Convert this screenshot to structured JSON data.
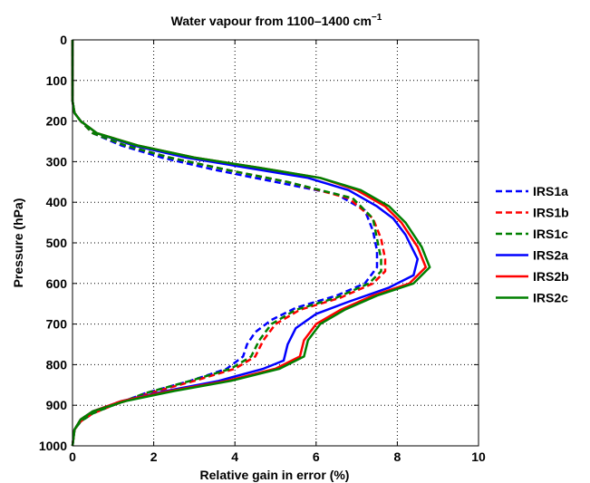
{
  "chart_data": {
    "type": "line",
    "title": "Water vapour from 1100–1400 cm",
    "title_superscript": "−1",
    "xlabel": "Relative gain in error (%)",
    "ylabel": "Pressure (hPa)",
    "xlim": [
      0,
      10
    ],
    "ylim": [
      1000,
      0
    ],
    "y_reversed": true,
    "x_ticks": [
      0,
      2,
      4,
      6,
      8,
      10
    ],
    "y_ticks": [
      0,
      100,
      200,
      300,
      400,
      500,
      600,
      700,
      800,
      900,
      1000
    ],
    "grid": true,
    "legend_position": "outside-right",
    "series": [
      {
        "name": "IRS1a",
        "color": "#0000ff",
        "dash": "dashed",
        "points": [
          [
            0,
            0
          ],
          [
            0,
            100
          ],
          [
            0,
            150
          ],
          [
            0.05,
            180
          ],
          [
            0.2,
            200
          ],
          [
            0.5,
            230
          ],
          [
            1.2,
            260
          ],
          [
            2.2,
            290
          ],
          [
            3.5,
            320
          ],
          [
            5.0,
            350
          ],
          [
            6.5,
            380
          ],
          [
            7.2,
            420
          ],
          [
            7.4,
            470
          ],
          [
            7.5,
            520
          ],
          [
            7.5,
            560
          ],
          [
            7.2,
            600
          ],
          [
            6.5,
            630
          ],
          [
            5.5,
            660
          ],
          [
            4.9,
            690
          ],
          [
            4.5,
            720
          ],
          [
            4.3,
            750
          ],
          [
            4.2,
            780
          ],
          [
            3.8,
            810
          ],
          [
            2.9,
            840
          ],
          [
            1.8,
            870
          ],
          [
            1.0,
            900
          ],
          [
            0.5,
            920
          ],
          [
            0.2,
            940
          ],
          [
            0.05,
            960
          ],
          [
            0,
            1000
          ]
        ]
      },
      {
        "name": "IRS1b",
        "color": "#ff0000",
        "dash": "dashed",
        "points": [
          [
            0,
            0
          ],
          [
            0,
            100
          ],
          [
            0,
            150
          ],
          [
            0.05,
            180
          ],
          [
            0.2,
            200
          ],
          [
            0.5,
            230
          ],
          [
            1.3,
            260
          ],
          [
            2.4,
            290
          ],
          [
            3.8,
            320
          ],
          [
            5.3,
            350
          ],
          [
            6.8,
            390
          ],
          [
            7.4,
            440
          ],
          [
            7.6,
            490
          ],
          [
            7.7,
            540
          ],
          [
            7.7,
            570
          ],
          [
            7.4,
            600
          ],
          [
            6.6,
            635
          ],
          [
            5.6,
            665
          ],
          [
            5.0,
            700
          ],
          [
            4.7,
            740
          ],
          [
            4.5,
            780
          ],
          [
            4.0,
            810
          ],
          [
            3.0,
            840
          ],
          [
            1.9,
            870
          ],
          [
            1.0,
            900
          ],
          [
            0.5,
            920
          ],
          [
            0.2,
            940
          ],
          [
            0.05,
            960
          ],
          [
            0,
            1000
          ]
        ]
      },
      {
        "name": "IRS1c",
        "color": "#008000",
        "dash": "dashed",
        "points": [
          [
            0,
            0
          ],
          [
            0,
            100
          ],
          [
            0,
            150
          ],
          [
            0.05,
            180
          ],
          [
            0.2,
            200
          ],
          [
            0.5,
            230
          ],
          [
            1.3,
            260
          ],
          [
            2.4,
            290
          ],
          [
            3.8,
            320
          ],
          [
            5.3,
            350
          ],
          [
            6.9,
            390
          ],
          [
            7.4,
            440
          ],
          [
            7.5,
            490
          ],
          [
            7.6,
            540
          ],
          [
            7.6,
            570
          ],
          [
            7.3,
            600
          ],
          [
            6.5,
            635
          ],
          [
            5.5,
            665
          ],
          [
            4.9,
            700
          ],
          [
            4.6,
            740
          ],
          [
            4.4,
            780
          ],
          [
            3.9,
            810
          ],
          [
            2.9,
            840
          ],
          [
            1.8,
            870
          ],
          [
            1.0,
            900
          ],
          [
            0.5,
            920
          ],
          [
            0.2,
            940
          ],
          [
            0.05,
            960
          ],
          [
            0,
            1000
          ]
        ]
      },
      {
        "name": "IRS2a",
        "color": "#0000ff",
        "dash": "solid",
        "points": [
          [
            0,
            0
          ],
          [
            0,
            100
          ],
          [
            0,
            150
          ],
          [
            0.05,
            180
          ],
          [
            0.2,
            200
          ],
          [
            0.6,
            230
          ],
          [
            1.5,
            260
          ],
          [
            2.8,
            290
          ],
          [
            4.3,
            315
          ],
          [
            5.8,
            340
          ],
          [
            6.8,
            370
          ],
          [
            7.5,
            410
          ],
          [
            7.9,
            440
          ],
          [
            8.2,
            480
          ],
          [
            8.5,
            540
          ],
          [
            8.4,
            580
          ],
          [
            7.8,
            610
          ],
          [
            6.8,
            645
          ],
          [
            6.0,
            675
          ],
          [
            5.5,
            710
          ],
          [
            5.3,
            750
          ],
          [
            5.2,
            790
          ],
          [
            4.7,
            810
          ],
          [
            3.6,
            840
          ],
          [
            2.3,
            865
          ],
          [
            1.2,
            890
          ],
          [
            0.5,
            915
          ],
          [
            0.2,
            935
          ],
          [
            0.05,
            960
          ],
          [
            0,
            1000
          ]
        ]
      },
      {
        "name": "IRS2b",
        "color": "#ff0000",
        "dash": "solid",
        "points": [
          [
            0,
            0
          ],
          [
            0,
            100
          ],
          [
            0,
            150
          ],
          [
            0.05,
            180
          ],
          [
            0.2,
            200
          ],
          [
            0.6,
            230
          ],
          [
            1.6,
            260
          ],
          [
            3.0,
            290
          ],
          [
            4.6,
            315
          ],
          [
            6.1,
            340
          ],
          [
            7.0,
            370
          ],
          [
            7.7,
            410
          ],
          [
            8.1,
            450
          ],
          [
            8.5,
            510
          ],
          [
            8.7,
            560
          ],
          [
            8.3,
            600
          ],
          [
            7.4,
            630
          ],
          [
            6.6,
            665
          ],
          [
            6.0,
            700
          ],
          [
            5.7,
            740
          ],
          [
            5.6,
            780
          ],
          [
            5.0,
            810
          ],
          [
            3.8,
            840
          ],
          [
            2.4,
            865
          ],
          [
            1.2,
            890
          ],
          [
            0.5,
            915
          ],
          [
            0.2,
            935
          ],
          [
            0.05,
            960
          ],
          [
            0,
            1000
          ]
        ]
      },
      {
        "name": "IRS2c",
        "color": "#008000",
        "dash": "solid",
        "points": [
          [
            0,
            0
          ],
          [
            0,
            100
          ],
          [
            0,
            150
          ],
          [
            0.05,
            180
          ],
          [
            0.2,
            200
          ],
          [
            0.6,
            230
          ],
          [
            1.6,
            260
          ],
          [
            3.0,
            290
          ],
          [
            4.6,
            315
          ],
          [
            6.1,
            340
          ],
          [
            7.1,
            370
          ],
          [
            7.8,
            410
          ],
          [
            8.2,
            450
          ],
          [
            8.6,
            510
          ],
          [
            8.8,
            560
          ],
          [
            8.4,
            600
          ],
          [
            7.5,
            630
          ],
          [
            6.7,
            665
          ],
          [
            6.1,
            700
          ],
          [
            5.8,
            740
          ],
          [
            5.7,
            780
          ],
          [
            5.1,
            810
          ],
          [
            3.9,
            840
          ],
          [
            2.5,
            865
          ],
          [
            1.3,
            890
          ],
          [
            0.5,
            915
          ],
          [
            0.2,
            935
          ],
          [
            0.05,
            960
          ],
          [
            0,
            1000
          ]
        ]
      }
    ]
  }
}
